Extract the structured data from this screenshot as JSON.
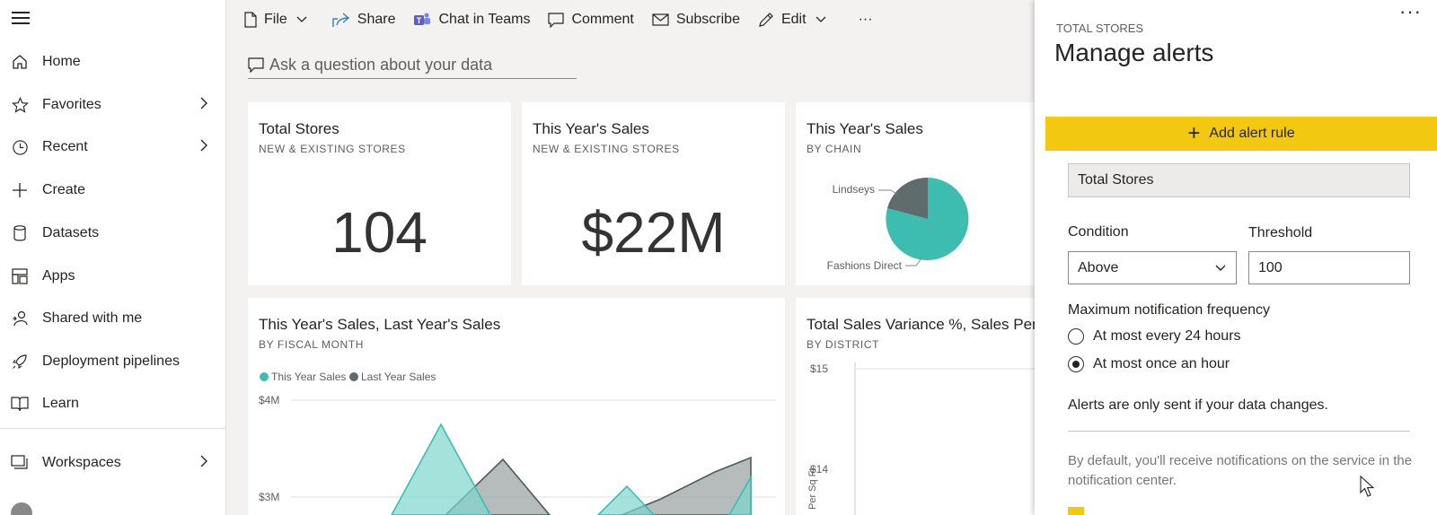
{
  "nav": {
    "items": [
      {
        "label": "Home",
        "icon": "home-icon",
        "chevron": false
      },
      {
        "label": "Favorites",
        "icon": "star-icon",
        "chevron": true
      },
      {
        "label": "Recent",
        "icon": "clock-icon",
        "chevron": true
      },
      {
        "label": "Create",
        "icon": "plus-icon",
        "chevron": false
      },
      {
        "label": "Datasets",
        "icon": "database-icon",
        "chevron": false
      },
      {
        "label": "Apps",
        "icon": "apps-icon",
        "chevron": false
      },
      {
        "label": "Shared with me",
        "icon": "shared-user-icon",
        "chevron": false
      },
      {
        "label": "Deployment pipelines",
        "icon": "rocket-icon",
        "chevron": false
      },
      {
        "label": "Learn",
        "icon": "book-icon",
        "chevron": false
      },
      {
        "label": "Workspaces",
        "icon": "workspaces-icon",
        "chevron": true
      }
    ]
  },
  "toolbar": {
    "file": "File",
    "share": "Share",
    "chat": "Chat in Teams",
    "comment": "Comment",
    "subscribe": "Subscribe",
    "edit": "Edit",
    "more": "···"
  },
  "qa": {
    "placeholder": "Ask a question about your data"
  },
  "tiles": {
    "total_stores": {
      "title": "Total Stores",
      "subtitle": "NEW & EXISTING STORES",
      "value": "104"
    },
    "sales": {
      "title": "This Year's Sales",
      "subtitle": "NEW & EXISTING STORES",
      "value": "$22M"
    },
    "chain": {
      "title": "This Year's Sales",
      "subtitle": "BY CHAIN",
      "label_a": "Lindseys",
      "label_b": "Fashions Direct"
    },
    "fiscal": {
      "title": "This Year's Sales, Last Year's Sales",
      "subtitle": "BY FISCAL MONTH",
      "legend_a": "This Year Sales",
      "legend_b": "Last Year Sales",
      "tick_4m": "$4M",
      "tick_3m": "$3M"
    },
    "variance": {
      "title": "Total Sales Variance %, Sales Per Sq Ft",
      "subtitle": "BY DISTRICT",
      "tick_15": "$15",
      "tick_14": "$14",
      "ylabel": "Per Sq Ft"
    }
  },
  "colors": {
    "teal": "#3cbdb0",
    "dark": "#5f6b6d",
    "accent": "#f2c811"
  },
  "panel": {
    "supertitle": "TOTAL STORES",
    "title": "Manage alerts",
    "more": "···",
    "add_rule": "Add alert rule",
    "rule_name": "Total Stores",
    "condition_label": "Condition",
    "condition_value": "Above",
    "threshold_label": "Threshold",
    "threshold_value": "100",
    "frequency_label": "Maximum notification frequency",
    "option_24h": "At most every 24 hours",
    "option_1h": "At most once an hour",
    "changes_note": "Alerts are only sent if your data changes.",
    "default_note": "By default, you'll receive notifications on the service in the notification center."
  }
}
